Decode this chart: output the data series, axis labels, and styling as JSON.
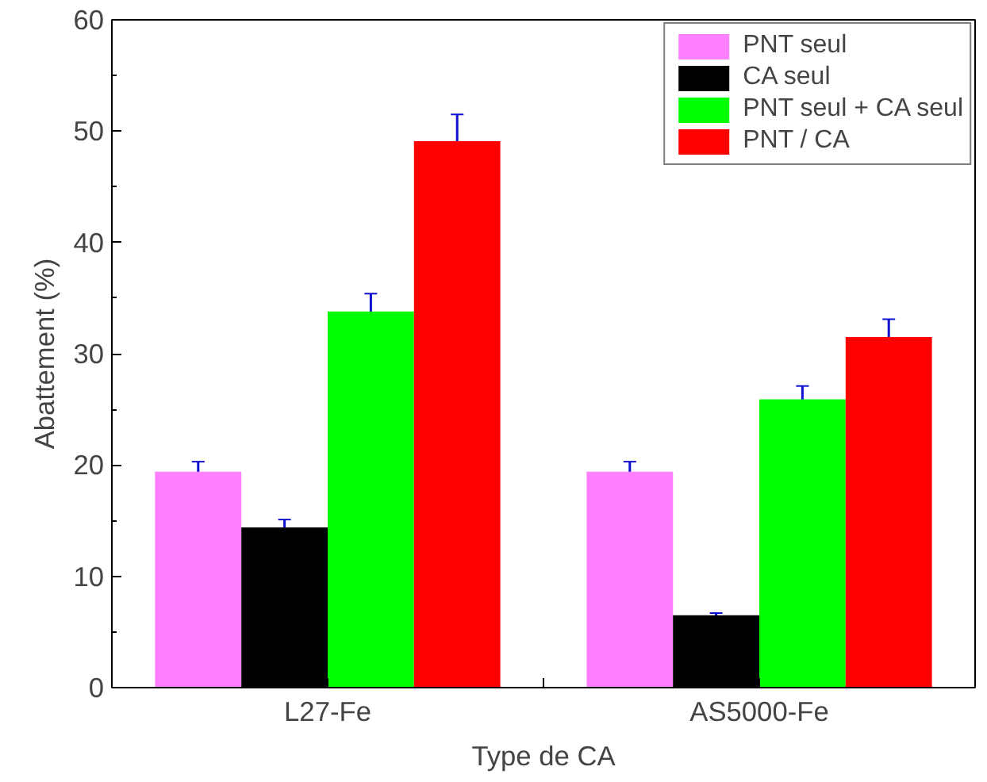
{
  "chart_data": {
    "type": "bar",
    "xlabel": "Type de CA",
    "ylabel": "Abattement (%)",
    "categories": [
      "L27-Fe",
      "AS5000-Fe"
    ],
    "series": [
      {
        "name": "PNT seul",
        "color": "#ff80ff",
        "values": [
          19.4,
          19.4
        ],
        "errors": [
          0.9,
          0.9
        ]
      },
      {
        "name": "CA seul",
        "color": "#000000",
        "values": [
          14.4,
          6.5
        ],
        "errors": [
          0.7,
          0.2
        ]
      },
      {
        "name": "PNT seul + CA seul",
        "color": "#00ff00",
        "values": [
          33.8,
          25.9
        ],
        "errors": [
          1.6,
          1.2
        ]
      },
      {
        "name": "PNT / CA",
        "color": "#ff0000",
        "values": [
          49.1,
          31.5
        ],
        "errors": [
          2.4,
          1.6
        ]
      }
    ],
    "ylim": [
      0,
      60
    ],
    "yticks": [
      0,
      10,
      20,
      30,
      40,
      50,
      60
    ],
    "grid": false,
    "legend": "top right"
  }
}
